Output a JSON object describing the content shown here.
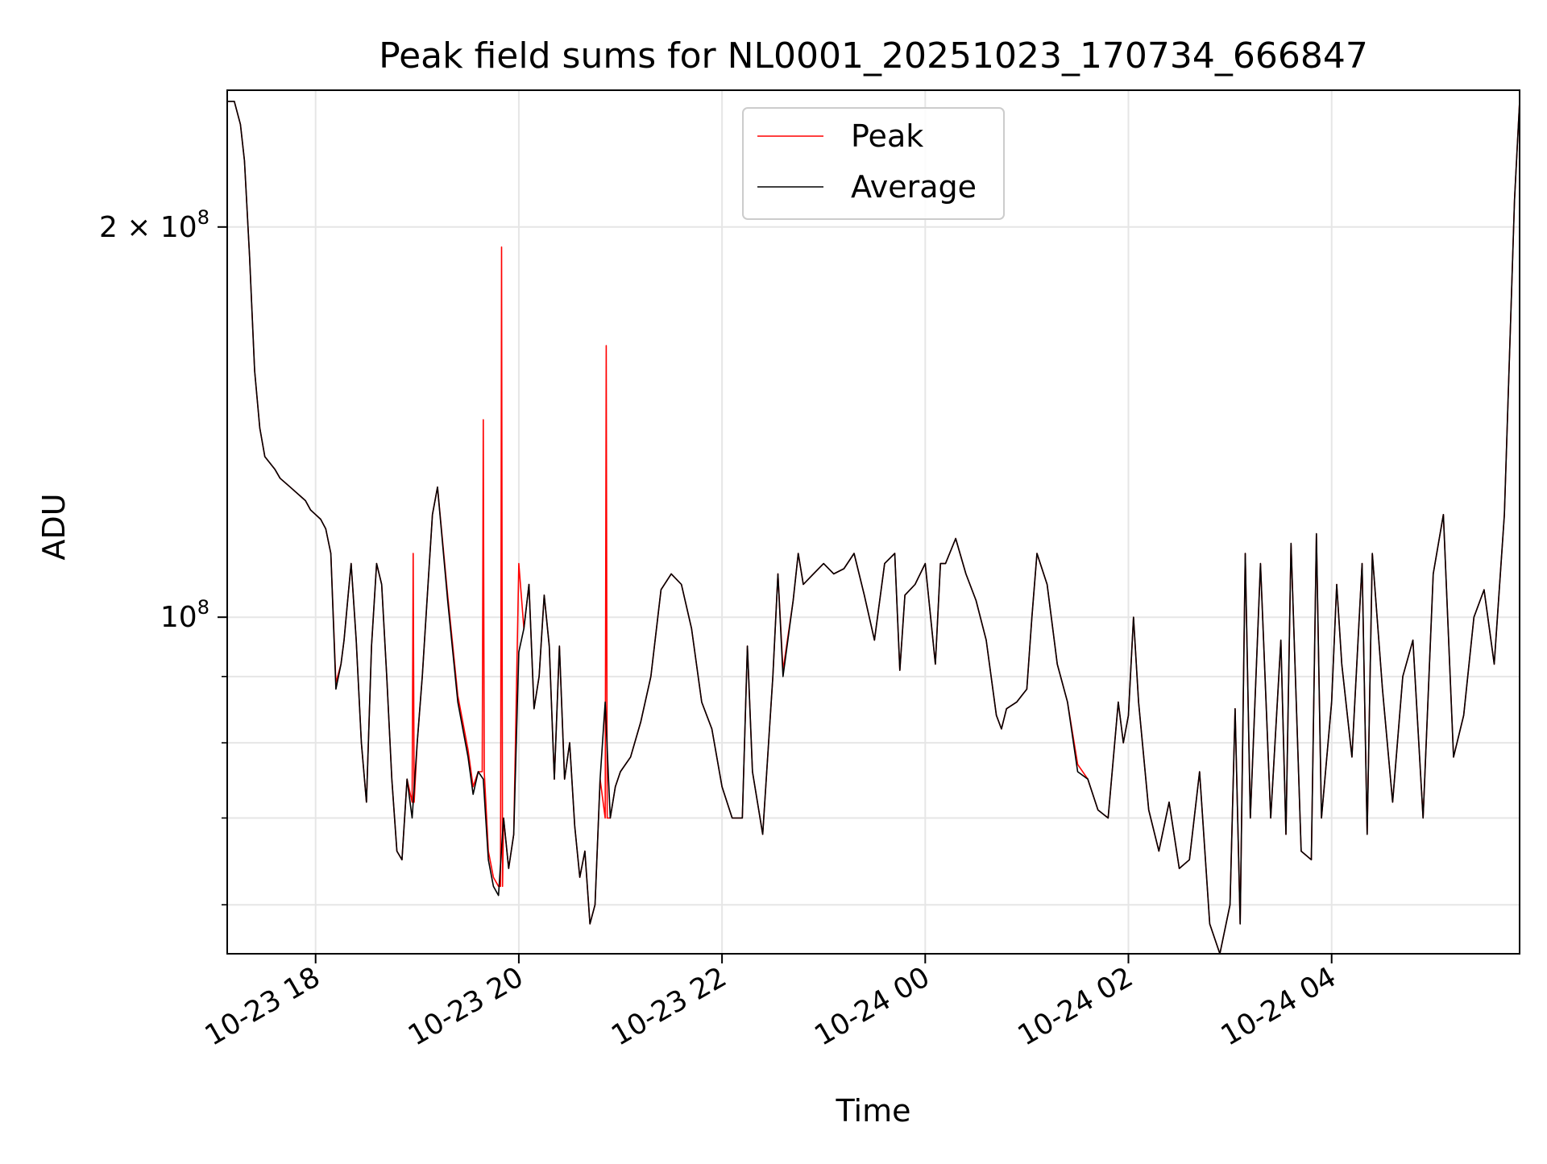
{
  "chart_data": {
    "type": "line",
    "title": "Peak field sums for NL0001_20251023_170734_666847",
    "xlabel": "Time",
    "ylabel": "ADU",
    "yscale": "log",
    "ylim": [
      55000000,
      255000000
    ],
    "x_unit": "hours since 2025-10-23 00:00",
    "xlim": [
      17.13,
      29.85
    ],
    "x_ticks": [
      {
        "value": 18,
        "label": "10-23 18"
      },
      {
        "value": 20,
        "label": "10-23 20"
      },
      {
        "value": 22,
        "label": "10-23 22"
      },
      {
        "value": 24,
        "label": "10-24 00"
      },
      {
        "value": 26,
        "label": "10-24 02"
      },
      {
        "value": 28,
        "label": "10-24 04"
      }
    ],
    "y_ticks_major": [
      {
        "value": 100000000,
        "label_base": "10",
        "label_exp": "8",
        "label_coef": ""
      },
      {
        "value": 200000000,
        "label_base": "10",
        "label_exp": "8",
        "label_coef": "2 × "
      }
    ],
    "y_ticks_minor": [
      60000000,
      70000000,
      80000000,
      90000000
    ],
    "grid": true,
    "legend": "upper center",
    "legend_entries": [
      {
        "name": "Peak",
        "color": "#ff0000"
      },
      {
        "name": "Average",
        "color": "#000000"
      }
    ],
    "series": [
      {
        "name": "Average",
        "color": "#000000",
        "x": [
          17.13,
          17.2,
          17.26,
          17.3,
          17.32,
          17.35,
          17.4,
          17.45,
          17.5,
          17.6,
          17.65,
          17.7,
          17.75,
          17.8,
          17.85,
          17.9,
          17.95,
          18.0,
          18.05,
          18.1,
          18.15,
          18.2,
          18.25,
          18.28,
          18.32,
          18.35,
          18.4,
          18.45,
          18.5,
          18.55,
          18.6,
          18.65,
          18.7,
          18.75,
          18.8,
          18.85,
          18.9,
          18.95,
          19.0,
          19.05,
          19.1,
          19.15,
          19.2,
          19.3,
          19.4,
          19.5,
          19.55,
          19.6,
          19.65,
          19.7,
          19.75,
          19.8,
          19.85,
          19.9,
          19.95,
          20.0,
          20.05,
          20.1,
          20.15,
          20.2,
          20.25,
          20.3,
          20.35,
          20.4,
          20.45,
          20.5,
          20.55,
          20.6,
          20.65,
          20.7,
          20.75,
          20.8,
          20.85,
          20.9,
          20.95,
          21.0,
          21.1,
          21.2,
          21.3,
          21.4,
          21.5,
          21.6,
          21.7,
          21.8,
          21.9,
          22.0,
          22.1,
          22.2,
          22.25,
          22.3,
          22.4,
          22.5,
          22.55,
          22.6,
          22.7,
          22.75,
          22.8,
          22.9,
          23.0,
          23.1,
          23.2,
          23.3,
          23.4,
          23.5,
          23.6,
          23.7,
          23.75,
          23.8,
          23.9,
          24.0,
          24.1,
          24.15,
          24.2,
          24.3,
          24.4,
          24.5,
          24.6,
          24.7,
          24.75,
          24.8,
          24.9,
          25.0,
          25.05,
          25.1,
          25.2,
          25.3,
          25.4,
          25.5,
          25.6,
          25.7,
          25.8,
          25.9,
          25.95,
          26.0,
          26.05,
          26.1,
          26.2,
          26.3,
          26.4,
          26.5,
          26.6,
          26.7,
          26.8,
          26.9,
          27.0,
          27.05,
          27.1,
          27.15,
          27.2,
          27.3,
          27.4,
          27.5,
          27.55,
          27.6,
          27.7,
          27.8,
          27.85,
          27.9,
          28.0,
          28.05,
          28.1,
          28.2,
          28.3,
          28.35,
          28.4,
          28.5,
          28.6,
          28.7,
          28.8,
          28.9,
          29.0,
          29.1,
          29.2,
          29.3,
          29.4,
          29.5,
          29.6,
          29.7,
          29.8,
          29.85
        ],
        "values": [
          250000000,
          250000000,
          240000000,
          225000000,
          210000000,
          190000000,
          155000000,
          140000000,
          133000000,
          130000000,
          128000000,
          127000000,
          126000000,
          125000000,
          124000000,
          123000000,
          121000000,
          120000000,
          119000000,
          117000000,
          112000000,
          88000000,
          92000000,
          96000000,
          104000000,
          110000000,
          96000000,
          80000000,
          72000000,
          95000000,
          110000000,
          106000000,
          90000000,
          75000000,
          66000000,
          65000000,
          75000000,
          70000000,
          80000000,
          90000000,
          104000000,
          120000000,
          126000000,
          103000000,
          86000000,
          78000000,
          73000000,
          76000000,
          75000000,
          65000000,
          62000000,
          61000000,
          70000000,
          64000000,
          68000000,
          94000000,
          98000000,
          106000000,
          85000000,
          90000000,
          104000000,
          95000000,
          75000000,
          95000000,
          75000000,
          80000000,
          69000000,
          63000000,
          66000000,
          58000000,
          60000000,
          75000000,
          86000000,
          70000000,
          74000000,
          76000000,
          78000000,
          83000000,
          90000000,
          105000000,
          108000000,
          106000000,
          98000000,
          86000000,
          82000000,
          74000000,
          70000000,
          70000000,
          95000000,
          76000000,
          68000000,
          90000000,
          108000000,
          90000000,
          103000000,
          112000000,
          106000000,
          108000000,
          110000000,
          108000000,
          109000000,
          112000000,
          104000000,
          96000000,
          110000000,
          112000000,
          91000000,
          104000000,
          106000000,
          110000000,
          92000000,
          110000000,
          110000000,
          115000000,
          108000000,
          103000000,
          96000000,
          84000000,
          82000000,
          85000000,
          86000000,
          88000000,
          100000000,
          112000000,
          106000000,
          92000000,
          86000000,
          76000000,
          75000000,
          71000000,
          70000000,
          86000000,
          80000000,
          84000000,
          100000000,
          86000000,
          71000000,
          66000000,
          72000000,
          64000000,
          65000000,
          76000000,
          58000000,
          55000000,
          60000000,
          85000000,
          58000000,
          112000000,
          70000000,
          110000000,
          70000000,
          96000000,
          68000000,
          114000000,
          66000000,
          65000000,
          116000000,
          70000000,
          86000000,
          106000000,
          92000000,
          78000000,
          110000000,
          68000000,
          112000000,
          88000000,
          72000000,
          90000000,
          96000000,
          70000000,
          108000000,
          120000000,
          78000000,
          84000000,
          100000000,
          105000000,
          92000000,
          120000000,
          210000000,
          250000000
        ]
      },
      {
        "name": "Peak",
        "color": "#ff0000",
        "x": [
          17.13,
          17.2,
          17.26,
          17.3,
          17.32,
          17.35,
          17.4,
          17.45,
          17.5,
          17.6,
          17.65,
          17.7,
          17.75,
          17.8,
          17.85,
          17.9,
          17.95,
          18.0,
          18.05,
          18.1,
          18.15,
          18.2,
          18.25,
          18.28,
          18.32,
          18.35,
          18.4,
          18.45,
          18.5,
          18.55,
          18.6,
          18.65,
          18.7,
          18.75,
          18.8,
          18.85,
          18.9,
          18.95,
          18.96,
          18.97,
          19.0,
          19.05,
          19.1,
          19.15,
          19.2,
          19.3,
          19.4,
          19.5,
          19.55,
          19.6,
          19.64,
          19.65,
          19.66,
          19.7,
          19.75,
          19.8,
          19.82,
          19.83,
          19.84,
          19.85,
          19.9,
          19.95,
          20.0,
          20.05,
          20.1,
          20.15,
          20.2,
          20.25,
          20.3,
          20.35,
          20.4,
          20.45,
          20.5,
          20.55,
          20.6,
          20.65,
          20.7,
          20.75,
          20.8,
          20.85,
          20.86,
          20.87,
          20.9,
          20.95,
          21.0,
          21.1,
          21.2,
          21.3,
          21.4,
          21.5,
          21.6,
          21.7,
          21.8,
          21.9,
          22.0,
          22.1,
          22.2,
          22.25,
          22.3,
          22.4,
          22.5,
          22.55,
          22.6,
          22.7,
          22.75,
          22.8,
          22.9,
          23.0,
          23.1,
          23.2,
          23.3,
          23.4,
          23.5,
          23.6,
          23.7,
          23.75,
          23.8,
          23.9,
          24.0,
          24.1,
          24.15,
          24.2,
          24.3,
          24.4,
          24.5,
          24.6,
          24.7,
          24.75,
          24.8,
          24.9,
          25.0,
          25.05,
          25.1,
          25.2,
          25.3,
          25.4,
          25.5,
          25.6,
          25.7,
          25.8,
          25.9,
          25.95,
          26.0,
          26.05,
          26.1,
          26.2,
          26.3,
          26.4,
          26.5,
          26.6,
          26.7,
          26.8,
          26.9,
          27.0,
          27.05,
          27.1,
          27.15,
          27.2,
          27.3,
          27.4,
          27.5,
          27.55,
          27.6,
          27.7,
          27.8,
          27.85,
          27.9,
          28.0,
          28.05,
          28.1,
          28.2,
          28.3,
          28.35,
          28.4,
          28.5,
          28.6,
          28.7,
          28.8,
          28.9,
          29.0,
          29.1,
          29.2,
          29.3,
          29.4,
          29.5,
          29.6,
          29.7,
          29.8,
          29.85
        ],
        "values": [
          250000000,
          250000000,
          240000000,
          225000000,
          210000000,
          190000000,
          155000000,
          140000000,
          133000000,
          130000000,
          128000000,
          127000000,
          126000000,
          125000000,
          124000000,
          123000000,
          121000000,
          120000000,
          119000000,
          117000000,
          112000000,
          89000000,
          92000000,
          96000000,
          104000000,
          110000000,
          96000000,
          80000000,
          72000000,
          95000000,
          110000000,
          106000000,
          90000000,
          75000000,
          66000000,
          65000000,
          75000000,
          72000000,
          112000000,
          72000000,
          80000000,
          90000000,
          104000000,
          120000000,
          126000000,
          104000000,
          87000000,
          79000000,
          74000000,
          76000000,
          76000000,
          142000000,
          76000000,
          66000000,
          63000000,
          62000000,
          62000000,
          193000000,
          62000000,
          70000000,
          64000000,
          68000000,
          110000000,
          98000000,
          106000000,
          85000000,
          90000000,
          104000000,
          95000000,
          75000000,
          95000000,
          75000000,
          80000000,
          69000000,
          63000000,
          66000000,
          58000000,
          60000000,
          75000000,
          70000000,
          162000000,
          70000000,
          70000000,
          74000000,
          76000000,
          78000000,
          83000000,
          90000000,
          105000000,
          108000000,
          106000000,
          98000000,
          86000000,
          82000000,
          74000000,
          70000000,
          70000000,
          95000000,
          76000000,
          68000000,
          90000000,
          108000000,
          91000000,
          103000000,
          112000000,
          106000000,
          108000000,
          110000000,
          108000000,
          109000000,
          112000000,
          104000000,
          96000000,
          110000000,
          112000000,
          91000000,
          104000000,
          106000000,
          110000000,
          92000000,
          110000000,
          110000000,
          115000000,
          108000000,
          103000000,
          96000000,
          84000000,
          82000000,
          85000000,
          86000000,
          88000000,
          100000000,
          112000000,
          106000000,
          92000000,
          86000000,
          77000000,
          75000000,
          71000000,
          70000000,
          86000000,
          80000000,
          84000000,
          100000000,
          86000000,
          71000000,
          66000000,
          72000000,
          64000000,
          65000000,
          76000000,
          58000000,
          55000000,
          60000000,
          85000000,
          58000000,
          112000000,
          70000000,
          110000000,
          70000000,
          96000000,
          68000000,
          114000000,
          66000000,
          65000000,
          116000000,
          70000000,
          86000000,
          106000000,
          92000000,
          78000000,
          110000000,
          68000000,
          112000000,
          88000000,
          72000000,
          90000000,
          96000000,
          70000000,
          108000000,
          120000000,
          78000000,
          84000000,
          100000000,
          105000000,
          92000000,
          120000000,
          210000000,
          250000000
        ]
      }
    ]
  }
}
